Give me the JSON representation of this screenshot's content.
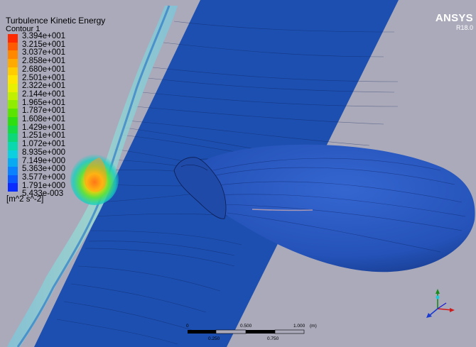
{
  "legend": {
    "title": "Turbulence Kinetic Energy",
    "subtitle": "Contour 1",
    "unit": "[m^2 s^-2]",
    "ticks": [
      "3.394e+001",
      "3.215e+001",
      "3.037e+001",
      "2.858e+001",
      "2.680e+001",
      "2.501e+001",
      "2.322e+001",
      "2.144e+001",
      "1.965e+001",
      "1.787e+001",
      "1.608e+001",
      "1.429e+001",
      "1.251e+001",
      "1.072e+001",
      "8.935e+000",
      "7.149e+000",
      "5.363e+000",
      "3.577e+000",
      "1.791e+000",
      "5.433e-003"
    ],
    "colors": [
      "#ff2a00",
      "#ff5a00",
      "#ff8800",
      "#ffaa00",
      "#ffcc00",
      "#ffe600",
      "#e8f000",
      "#c0f000",
      "#90ec00",
      "#5ae400",
      "#2ede10",
      "#14dc44",
      "#0cd87a",
      "#0cd8b0",
      "#0ccfe0",
      "#0aaaf2",
      "#0a82ff",
      "#0a58ff",
      "#0a2cff"
    ]
  },
  "brand": {
    "name": "ANSYS",
    "version": "R18.0"
  },
  "scale_bar": {
    "top_labels": [
      "0",
      "0.500",
      "1.000",
      "(m)"
    ],
    "bottom_labels": [
      "0.250",
      "0.750"
    ]
  },
  "colors": {
    "background": "#aaaabb",
    "plane": "#1d4fb0",
    "body": "#2456c0"
  }
}
